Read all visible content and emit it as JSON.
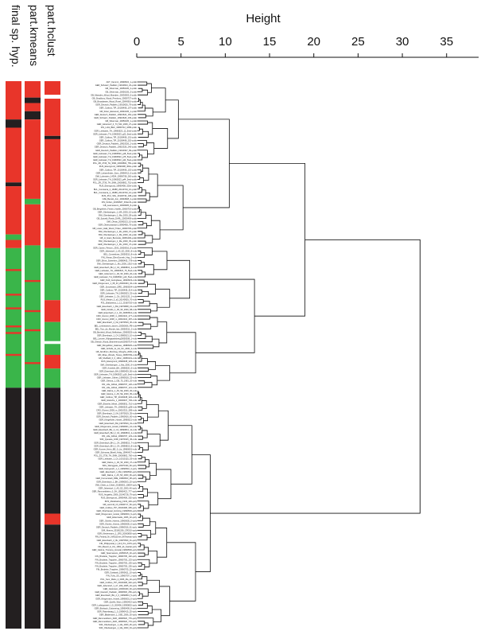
{
  "chart_data": {
    "type": "dendrogram",
    "axis": {
      "title": "Height",
      "range": [
        0,
        37
      ],
      "ticks": [
        0,
        5,
        10,
        15,
        20,
        25,
        30,
        35
      ]
    },
    "column_labels": [
      "final sp. hyp.",
      "part.kmeans",
      "part.hclust"
    ],
    "colors": {
      "red": "#e8352a",
      "green": "#3ab54a",
      "black": "#231f20",
      "white": "#ffffff"
    },
    "strip_segments": [
      [
        {
          "from": 0.0,
          "to": 0.07,
          "color": "red"
        },
        {
          "from": 0.07,
          "to": 0.085,
          "color": "black"
        },
        {
          "from": 0.085,
          "to": 0.185,
          "color": "red"
        },
        {
          "from": 0.185,
          "to": 0.192,
          "color": "black"
        },
        {
          "from": 0.192,
          "to": 0.28,
          "color": "red"
        },
        {
          "from": 0.28,
          "to": 0.29,
          "color": "green"
        },
        {
          "from": 0.29,
          "to": 0.305,
          "color": "red"
        },
        {
          "from": 0.305,
          "to": 0.56,
          "color": "green"
        },
        {
          "from": 0.56,
          "to": 1.0,
          "color": "black"
        }
      ],
      [
        {
          "from": 0.0,
          "to": 0.03,
          "color": "red"
        },
        {
          "from": 0.03,
          "to": 0.04,
          "color": "black"
        },
        {
          "from": 0.04,
          "to": 0.055,
          "color": "red"
        },
        {
          "from": 0.055,
          "to": 0.07,
          "color": "black"
        },
        {
          "from": 0.07,
          "to": 0.215,
          "color": "red"
        },
        {
          "from": 0.215,
          "to": 0.225,
          "color": "green"
        },
        {
          "from": 0.225,
          "to": 0.3,
          "color": "red"
        },
        {
          "from": 0.3,
          "to": 0.56,
          "color": "green"
        },
        {
          "from": 0.56,
          "to": 1.0,
          "color": "black"
        }
      ],
      [
        {
          "from": 0.0,
          "to": 0.025,
          "color": "red"
        },
        {
          "from": 0.025,
          "to": 0.032,
          "color": "white"
        },
        {
          "from": 0.032,
          "to": 0.1,
          "color": "red"
        },
        {
          "from": 0.1,
          "to": 0.106,
          "color": "black"
        },
        {
          "from": 0.106,
          "to": 0.305,
          "color": "red"
        },
        {
          "from": 0.305,
          "to": 0.4,
          "color": "green"
        },
        {
          "from": 0.4,
          "to": 0.44,
          "color": "red"
        },
        {
          "from": 0.44,
          "to": 0.475,
          "color": "green"
        },
        {
          "from": 0.475,
          "to": 0.48,
          "color": "white"
        },
        {
          "from": 0.48,
          "to": 0.5,
          "color": "green"
        },
        {
          "from": 0.5,
          "to": 0.525,
          "color": "red"
        },
        {
          "from": 0.525,
          "to": 0.56,
          "color": "green"
        },
        {
          "from": 0.56,
          "to": 0.79,
          "color": "black"
        },
        {
          "from": 0.79,
          "to": 0.81,
          "color": "red"
        },
        {
          "from": 0.81,
          "to": 1.0,
          "color": "black"
        }
      ]
    ],
    "extra_marks": [
      {
        "column": 0,
        "at": 0.345,
        "color": "red"
      },
      {
        "column": 0,
        "at": 0.39,
        "color": "red"
      },
      {
        "column": 0,
        "at": 0.415,
        "color": "red"
      },
      {
        "column": 0,
        "at": 0.448,
        "color": "red"
      },
      {
        "column": 0,
        "at": 0.46,
        "color": "red"
      },
      {
        "column": 0,
        "at": 0.5,
        "color": "red"
      },
      {
        "column": 1,
        "at": 0.365,
        "color": "red"
      },
      {
        "column": 1,
        "at": 0.42,
        "color": "red"
      },
      {
        "column": 1,
        "at": 0.455,
        "color": "red"
      },
      {
        "column": 1,
        "at": 0.515,
        "color": "red"
      }
    ],
    "merges": [
      {
        "height": 32.0,
        "children": [
          "g1",
          "g2"
        ]
      },
      {
        "height": 19.0,
        "children": [
          "g1a",
          "g1b"
        ]
      },
      {
        "height": 8.3,
        "children": [
          "g2a",
          "g2b"
        ]
      }
    ],
    "leaf_labels": [
      "AUT_Kemm1_19990522_1~pollo",
      "GER_Schwarz_Paddeln_19910624_23~pollo",
      "GB_Silverman_20050105_2~pollo",
      "GB_Silverman_20050105_3~pollo",
      "GB_Marsden_Wood_Marsden_20030903_5~pollo",
      "GB_Stradbury_Wood_Pembury_20050727~pollo",
      "GB_Broadwater_Wood_Rosel_20040916~pollo",
      "GER_Deutsch_Paddeln_19910626_79~pollo",
      "GER_Cottbus_TIP_20100408_107~pollo",
      "GB_Silver_Ekewood_20040105_1~pollo",
      "GER_Deutsch_Paddeln_19910624_152~pollo",
      "GER_Schwarz_Paddeln_19910626_245~pollo",
      "GB_Silverman_20050105_1~pollo",
      "GER_Jeberstorf_4_T3_524_2006_27~pollo",
      "FIN_Lohk_BEC_19860712_1058~pollo",
      "GER_Liebsater_TH_19960523_12_5red~pollo",
      "GER_Liebsater_TH_19960523_g22_5red~pollo",
      "GER_Cottbus_TIP_20100408_101~pollo",
      "GER_Cottbus_TIP_20100408_202~pollo",
      "GER_Deutsch_Paddeln_19910326_2~pollo",
      "GER_Deutsch_Paddeln_19910326_240~pollo",
      "GER_Deutsch_Paddeln_19910327_99~pollo",
      "GER_Liebsater_TH_19960523_g18_5red~pollo",
      "GER_Liebsater_TH_19960523_g75_5red~pollo",
      "GER_Liebsater_TH_19960523_g33_5red~pollo",
      "POL_ZR_2736_TH_SMN_20000802_750~pollo",
      "RUS_Eisengrund_19990408_300e~pollo",
      "GER_Cottbus_TIP_20100408_102~pollo",
      "GER_Leitzenlinder_Sam_19990412_6~pollo",
      "SWI_Lohnstein_14304_19990708_260~pollo",
      "GER_Liebsater_TH_19960523_g44_5red~pollo",
      "POL_ZR_2736_TH_SMN_20000802_751~pollo",
      "RUS_Eisengrund_19990408_320e~pollo",
      "BUL_Constanta_2_16088_20140719_10~pollo",
      "BUL_Constanta_2_16088_20140720_10~pollo",
      "RUS_Pinz_SNL_20130730_138~pollo",
      "CZE_Benski_Ann_20040828_2~pollo",
      "FIN_Finfam_20160827_Fhikon5~pollo",
      "GB_Leamuseum_20000905_8~pollo",
      "GB_Bergetheir_Finsen_Haelth_20060719~pollo",
      "GER_Oberlasingen_1_MA_2000_10~pollo",
      "SWI_Oberlasingen_1_Ma_2000_28~pollo",
      "GB_Spiceld_Rowls_DARL_20030409~pollo",
      "SWI_Olivas_20090213_10~pollo",
      "GER_Oberschandorf_19990408_79~pollo",
      "GB_Lower_Halk_Wood_Tirken_20060705~pollo",
      "SWI_Oberlasingen_1_Mu_2000_37~pollo",
      "SWI_Oberlasingen_1_Ma_2000_42~pollo",
      "GB_H_Giant_Burnside_20051206~pollo",
      "SWI_Oberlasingen_1_Ma_2000_35~pollo",
      "GER_Oberlasingen_1_Mu_2000_47~pollo",
      "GER_Carten_Flevorn_2300_20050916_8~pollo",
      "GER_Jeberstorf_1_A5_5Z_2000_8~rufa",
      "BEL_Constelcwe_20050515_8~rufa",
      "FIN_Viiman_ElemSomeln_Hsg_2~rufa",
      "GER_Erfurt_Schenken_19980405_778~rufa",
      "SWI_Oberlasingen_1_Mu_2000_1310~rufa",
      "GER_Eisenbach_BH_2_C4_19990813_3~rufa",
      "GER_Liebsater_TH_19960523_75_5red~rufa",
      "GER_Jeberstorf_1_A5_5Z_2000_20~rufa",
      "GER_Liebsater_TH_19960523_g10_5red~rufa",
      "GER_Kroll_Gutingbaue_19940523~rufa",
      "GER_Klingemann_1_08_33_20000403_34~rufa",
      "GER_Sonzewsen_DRE_19960504~rufa",
      "GER_Cottbus_TIP_20100408_314~rufa",
      "GER_Liebsater_TH_19960523_32~rufa",
      "GER_Liebsater_1_Ch_10010125_1~rufa",
      "RUS_Merjen_3_a3_20140929_70~rufa",
      "POL_Bialowieza_1_12_20160720~rufa",
      "GER_Eisenbach_1_BH_19970808_15~rufa",
      "GER_Cinlulls_1_A5_5Z_2000_58~rufa",
      "GER_Eisenbach_2_1_A5_20050516~rufa",
      "CRO_Glumni_2008_m_20010321_277~rufa",
      "CRO_Glumni_2008_m_20010321_287~rufa",
      "GER_Eisenbach_2_0H_19970519_30~rufa",
      "BEL_Lenbeansen_lanzen_20050606_P8~rufa",
      "BEL_Tour_de_Monde_lais_20050315_2~rufa",
      "GB_Benheld_Wood_Melksham_20060525~rufa",
      "GER_Eisenbach_1_C4_19980513_10~rufa",
      "BEL_Leuven_Wijngaardsberg20050308_1~rufa",
      "GB_Gletsch_Wood_Bramleemouth20060714~rufa",
      "GER_Klingelfoler_Haslowe_19980525~rufa",
      "GER_Scholls_Gi_Ad_SC_2006_3~rufa",
      "GB_Nordhorn_Bronheg_Sfoughs_2006~rufa",
      "GB_Idhee_Woods_Tisoss_20050709~rufa",
      "GB_Sheffield_0_0_1Mmr_20050101~rufa",
      "RUS_Eisengrund_19990408_325~rufa",
      "SWI_Oberlasingen_1_Ma_2000_9~rufa",
      "GER_Kneeble_BH_19990520_6~rufa",
      "GER_Eisenbach_BH_19980429_56~rufa",
      "GER_Liebsater_TH_19960523_g16_5red~rufa",
      "GER_Liebsater_Gbben_19990518_32~rufa",
      "GER_Gletma_1_GB_75_1993_20~rufa",
      "FIN_Lille_Gbbsk_19960707_120~rufa",
      "FIN_Lille_Gbbsk_19960707_121~rufa",
      "GER_Dalma_1_A5_5E_2000_30~rufa",
      "GER_Gletma_1_A5_5E_2000_35~rufa",
      "GER_Cottbus_TIP_20100408_320~rufa",
      "GER_Gletsche_1_20000407_700~rufa",
      "GER_Elsterlie_Mirsel_19990831_710~rufa",
      "GER_Liebsater_TH_19960523_g58~rufa",
      "CRO_Glumni_2008_m_20010321_289~rufa",
      "GER_Eisenbach_2_0H_19970519_35~rufa",
      "GER_Deutsch_Paddeln_19960916_60~rufa",
      "GER_Klingelfoler_Hostel_19990521~rufa",
      "GER_Eisenbach_BH_19970519_31~rufa",
      "GER_Klingemann_Hostel_19990601_10~rufa",
      "GER_Eisenbach_BH_2_C4_19990813_11~rufa",
      "GER_Eisenbach_BH_2_C4_19990813_2~rufa",
      "FIN_Lille_Gbbsk_19960707_123~rufa",
      "SWI_Quesela_1006_19970315_45~rufa",
      "GER_Eisenbach_BH_1_C4_19990813_7~rufa",
      "GER_Eisenbach_BH_2_C4_19990813_8~rufa",
      "GER_Kunner_Heim_BE_0_Lis_19960601~rufa",
      "GER_Schnowa_Bitzell_Holig_19940427~rufa",
      "POL_ZS_2736_TH_SMN_20000802_760~rufa",
      "GER_Liebsater_1_Ch_10010125_53~rufa",
      "GER_Dalma_1_A5_5Z_2000_37~rufa",
      "SWL_Weinggass_20070430_60~poly",
      "GER_Kieingreich_1_2_19990510_3~poly",
      "GER_Eisenbach_1_BH_19990502~poly",
      "GER_Dalma_1_A5_5Z_2000_36~poly",
      "GER_Kunnerstadt_DRE_19960603_28~poly",
      "GER_Eisenbach_1_BH_19990503_20~poly",
      "SWI_Chiett_a_Cribel_20180602_10824~poly",
      "GER_Jeberstorf_1_A5_5Z_2000_40~poly",
      "GER_Rammelsheim_0_3H_19960422_777~poly",
      "RUS_Angaeko_3006_20140728_79~poly",
      "RUS_Eisengrund_19990408_302~poly",
      "RUS_Medelsebug_1943_429~poly",
      "GB_Lamrndl_Cll_19940717_50~poly",
      "GER_Cottbus_TIP_20100408_305~poly",
      "GER_Oberhausel_Hcrsting_19990503~poly",
      "GER_Klingemann_Hostel_19990601_9~poly",
      "GER_Elsternaide_2006_32~poly",
      "GER_Glonhe_Hoenst_19960605_5~poly",
      "GER_Glonhe_Voenst_19960605_6~poly",
      "GER_Deutsch_Paddeln_19960916_61~poly",
      "SWI_Abenrs_2018/1206_CRO10~poly",
      "GER_Klettermann_1_1RS_20060800~poly",
      "FIN_Finland_Nr_NADLEmel_967ewrats~poly",
      "GER_Eisenbach_2_0H_19970509_31~poly",
      "FIN_Philippsstal_LI_113_Pro_1979~poly",
      "FIN_Meesif_in_Kis_1960_ab_Gardel~poly",
      "GER_Gletma_Trompoy_Hcsstal_19990503~poly",
      "GER_Sparmancos_20050615_20~poly",
      "FIN_Brodette_Trappher_19960705_132~poly",
      "FIN_Brodette_Trappher_19960705_133~poly",
      "FIN_Brodette_Trappher_19960705_135~poly",
      "FIN_Brodette_Trappher_19960705_136~poly",
      "FIN_Brodette_Trappher_19960705_25~poly",
      "GER_Garkasiti_19990611_10~poly",
      "FIN_Tuhu_SS_19960707_1~poly",
      "POL_Sunr_Maltu_2_0006_Ma_20~poly",
      "GER_Cottbus_TIP_20100408_320~poly",
      "GER_Jeberstorf_1_A7_209_2005_19~poly",
      "GER_Gletnstein_20000409_30~poly",
      "GER_Deutsch_Paddeln_19960530_250~poly",
      "GER_Eisenbach_BH_2_0_19990813_5~poly",
      "GER_Klingemann_Hostel_19990601_6~poly",
      "GER_Quelle_Worn_19960413~poly",
      "GER_Ludwigsweel_I_S_260406_19990815~poly",
      "GER_Bitzbach_Guttmering_19990409_8~poly",
      "GER_Ratzelwaag_1_0_19990415_25~poly",
      "GER_Bladendorf_1_OSE_2006_30~poly",
      "GER_Rammelsheim_0HR_19960520_776~poly",
      "GER_Rammelsheim_0HR_19960520_779~poly",
      "SWI_Oberlasingen_1_Ma_2000_25~poly",
      "SWI_Oberlasingen_1_Ma_2000_33~poly"
    ]
  }
}
